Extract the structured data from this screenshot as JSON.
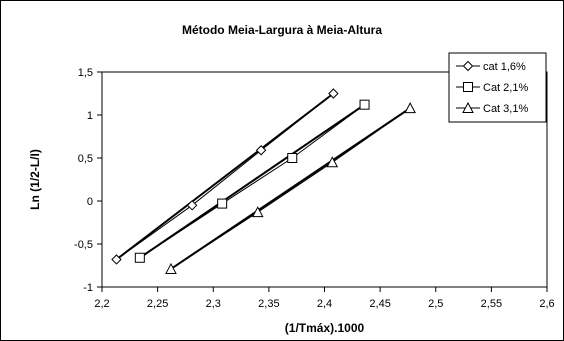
{
  "chart_data": {
    "type": "scatter",
    "title": "Método Meia-Largura à Meia-Altura",
    "xlabel": "(1/Tmáx).1000",
    "ylabel": "Ln (1/2-L/I)",
    "xlim": [
      2.2,
      2.6
    ],
    "ylim": [
      -1,
      1.5
    ],
    "x_ticks": [
      "2,2",
      "2,25",
      "2,3",
      "2,35",
      "2,4",
      "2,45",
      "2,5",
      "2,55",
      "2,6"
    ],
    "y_ticks": [
      "1,5",
      "1",
      "0,5",
      "0",
      "-0,5",
      "-1"
    ],
    "grid": false,
    "legend_position": "top-right",
    "series": [
      {
        "name": "cat 1,6%",
        "marker": "diamond",
        "x": [
          2.213,
          2.281,
          2.343,
          2.408
        ],
        "y": [
          -0.68,
          -0.05,
          0.59,
          1.25
        ],
        "fit": [
          [
            2.213,
            -0.68
          ],
          [
            2.408,
            1.25
          ]
        ]
      },
      {
        "name": "Cat 2,1%",
        "marker": "square",
        "x": [
          2.234,
          2.308,
          2.371,
          2.436
        ],
        "y": [
          -0.66,
          -0.03,
          0.5,
          1.12
        ],
        "fit": [
          [
            2.234,
            -0.66
          ],
          [
            2.436,
            1.12
          ]
        ]
      },
      {
        "name": "Cat 3,1%",
        "marker": "triangle",
        "x": [
          2.262,
          2.34,
          2.407,
          2.477
        ],
        "y": [
          -0.79,
          -0.13,
          0.45,
          1.08
        ],
        "fit": [
          [
            2.262,
            -0.79
          ],
          [
            2.477,
            1.08
          ]
        ]
      }
    ]
  }
}
